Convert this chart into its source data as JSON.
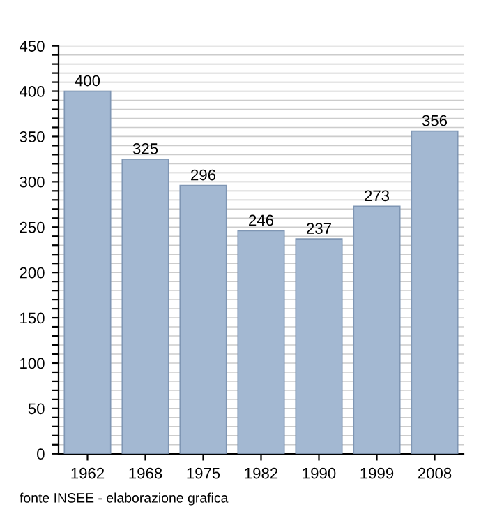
{
  "chart_data": {
    "type": "bar",
    "categories": [
      "1962",
      "1968",
      "1975",
      "1982",
      "1990",
      "1999",
      "2008"
    ],
    "values": [
      400,
      325,
      296,
      246,
      237,
      273,
      356
    ],
    "color": "#a3b8d2",
    "data_labels": true,
    "ylim": [
      0,
      450
    ],
    "yticks": [
      0,
      {
        "value": 10,
        "label": null
      },
      {
        "value": 20,
        "label": null
      },
      {
        "value": 30,
        "label": null
      },
      {
        "value": 40,
        "label": null
      },
      50,
      {
        "value": 60,
        "label": null
      },
      {
        "value": 70,
        "label": null
      },
      {
        "value": 80,
        "label": null
      },
      {
        "value": 90,
        "label": null
      },
      100,
      {
        "value": 110,
        "label": null
      },
      {
        "value": 120,
        "label": null
      },
      {
        "value": 130,
        "label": null
      },
      {
        "value": 140,
        "label": null
      },
      150,
      {
        "value": 160,
        "label": null
      },
      {
        "value": 170,
        "label": null
      },
      {
        "value": 180,
        "label": null
      },
      {
        "value": 190,
        "label": null
      },
      200,
      {
        "value": 210,
        "label": null
      },
      {
        "value": 220,
        "label": null
      },
      {
        "value": 230,
        "label": null
      },
      {
        "value": 240,
        "label": null
      },
      250,
      {
        "value": 260,
        "label": null
      },
      {
        "value": 270,
        "label": null
      },
      {
        "value": 280,
        "label": null
      },
      {
        "value": 290,
        "label": null
      },
      300,
      {
        "value": 310,
        "label": null
      },
      {
        "value": 320,
        "label": null
      },
      {
        "value": 330,
        "label": null
      },
      {
        "value": 340,
        "label": null
      },
      350,
      {
        "value": 360,
        "label": null
      },
      {
        "value": 370,
        "label": null
      },
      {
        "value": 380,
        "label": null
      },
      {
        "value": 390,
        "label": null
      },
      400,
      {
        "value": 410,
        "label": null
      },
      {
        "value": 420,
        "label": null
      },
      {
        "value": 430,
        "label": null
      },
      {
        "value": 440,
        "label": null
      },
      450
    ],
    "grid": "y",
    "annotations": [
      "fonte INSEE - elaborazione grafica"
    ]
  }
}
